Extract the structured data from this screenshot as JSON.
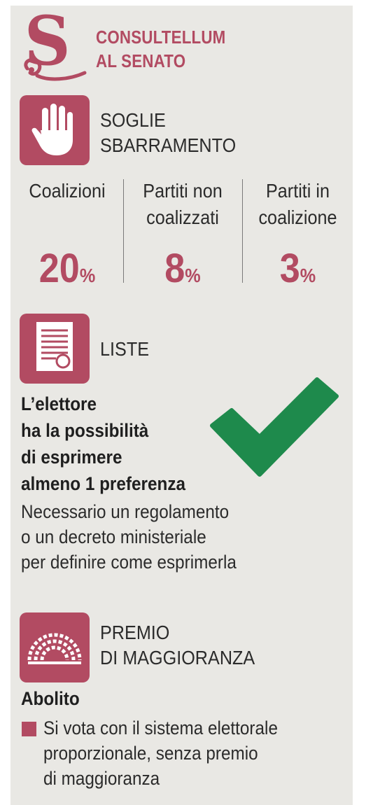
{
  "colors": {
    "accent": "#b24b62",
    "check": "#1e8a4c",
    "panel_bg": "#e9e8e4"
  },
  "logo": {
    "letter": "S",
    "icon": "swirl-s-logo-icon"
  },
  "header": {
    "line1": "CONSULTELLUM",
    "line2": "AL SENATO"
  },
  "soglie": {
    "icon": "raised-hand-icon",
    "line1": "SOGLIE",
    "line2": "SBARRAMENTO",
    "columns": [
      {
        "line1": "Coalizioni",
        "line2": "",
        "value": "20",
        "unit": "%"
      },
      {
        "line1": "Partiti non",
        "line2": "coalizzati",
        "value": "8",
        "unit": "%"
      },
      {
        "line1": "Partiti in",
        "line2": "coalizione",
        "value": "3",
        "unit": "%"
      }
    ]
  },
  "liste": {
    "icon": "certificate-document-icon",
    "label": "LISTE",
    "bold_lines": [
      "L’elettore",
      "ha la possibilità",
      "di esprimere",
      "almeno 1 preferenza"
    ],
    "check_icon": "checkmark-icon",
    "note_lines": [
      "Necessario un regolamento",
      "o un decreto ministeriale",
      "per definire come esprimerla"
    ]
  },
  "premio": {
    "icon": "parliament-hemicycle-icon",
    "line1": "PREMIO",
    "line2": "DI MAGGIORANZA",
    "status": "Abolito",
    "bullet_lines": [
      "Si vota con il sistema elettorale",
      "proporzionale, senza premio",
      "di maggioranza"
    ]
  }
}
